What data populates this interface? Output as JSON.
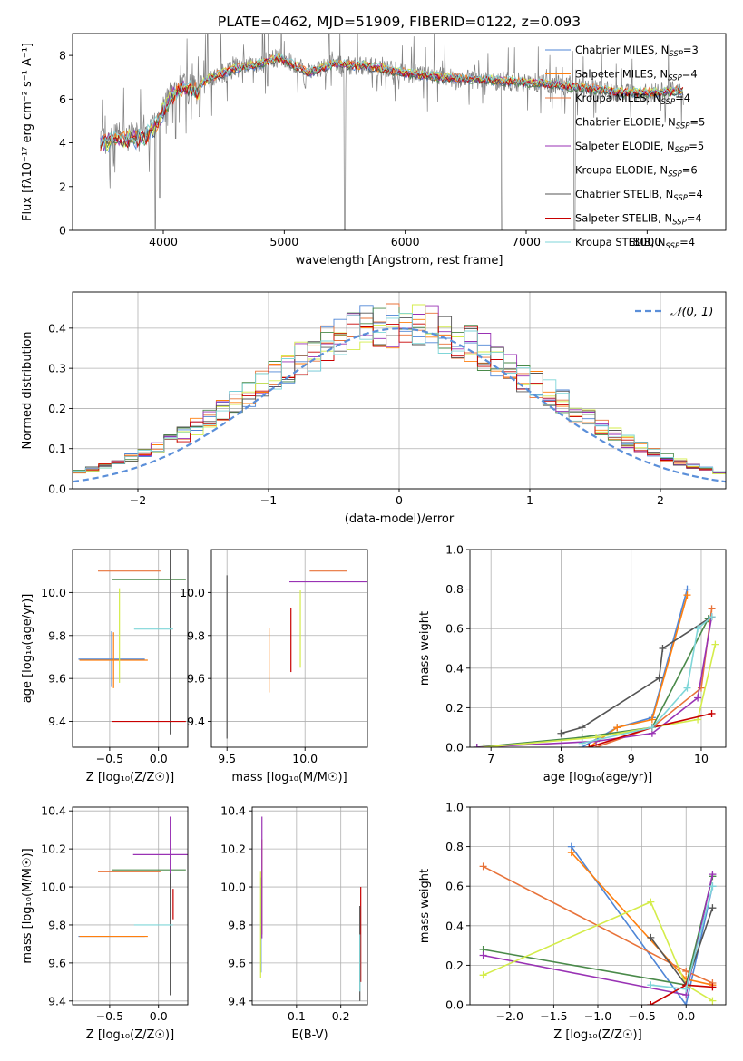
{
  "figure": {
    "title": "PLATE=0462, MJD=51909, FIBERID=0122, z=0.093"
  },
  "models": [
    {
      "name": "Chabrier MILES",
      "nssp": "3",
      "color": "#4f86d6"
    },
    {
      "name": "Salpeter MILES",
      "nssp": "4",
      "color": "#ff7f0e"
    },
    {
      "name": "Kroupa MILES",
      "nssp": "4",
      "color": "#e8733a"
    },
    {
      "name": "Chabrier ELODIE",
      "nssp": "5",
      "color": "#4a8a4a"
    },
    {
      "name": "Salpeter ELODIE",
      "nssp": "5",
      "color": "#9932b4"
    },
    {
      "name": "Kroupa ELODIE",
      "nssp": "6",
      "color": "#d4ec4a"
    },
    {
      "name": "Chabrier STELIB",
      "nssp": "4",
      "color": "#555555"
    },
    {
      "name": "Salpeter STELIB",
      "nssp": "4",
      "color": "#c80000"
    },
    {
      "name": "Kroupa STELIB",
      "nssp": "4",
      "color": "#7fd6d8"
    }
  ],
  "chart_data": [
    {
      "type": "line",
      "id": "spectrum",
      "xlabel": "wavelength [Angstrom, rest frame]",
      "ylabel": "Flux [fλ10⁻¹⁷ erg cm⁻² s⁻¹ A⁻¹]",
      "xlim": [
        3250,
        8650
      ],
      "ylim": [
        0,
        9
      ],
      "xticks": [
        4000,
        5000,
        6000,
        7000,
        8000
      ],
      "yticks": [
        0,
        2,
        4,
        6,
        8
      ],
      "data_color": "#808080",
      "continuum": [
        [
          3480,
          4.3
        ],
        [
          3560,
          4.3
        ],
        [
          3620,
          4.5
        ],
        [
          3700,
          4.4
        ],
        [
          3800,
          4.6
        ],
        [
          3850,
          4.5
        ],
        [
          3950,
          5.2
        ],
        [
          4050,
          6.3
        ],
        [
          4150,
          6.8
        ],
        [
          4300,
          6.6
        ],
        [
          4400,
          7.0
        ],
        [
          4600,
          7.4
        ],
        [
          4800,
          7.6
        ],
        [
          4950,
          7.9
        ],
        [
          5100,
          7.5
        ],
        [
          5200,
          7.2
        ],
        [
          5400,
          7.6
        ],
        [
          5700,
          7.5
        ],
        [
          6000,
          7.2
        ],
        [
          6300,
          7.0
        ],
        [
          6600,
          6.9
        ],
        [
          6900,
          6.8
        ],
        [
          7200,
          6.7
        ],
        [
          7500,
          6.5
        ],
        [
          7800,
          6.3
        ],
        [
          8100,
          6.3
        ],
        [
          8300,
          6.4
        ]
      ],
      "absorption_lines": [
        [
          3934,
          0.1
        ],
        [
          3969,
          1.5
        ],
        [
          4102,
          4.2
        ],
        [
          4300,
          5.2
        ],
        [
          4861,
          6.6
        ],
        [
          5175,
          6.5
        ],
        [
          5500,
          0.0
        ],
        [
          6800,
          0.0
        ],
        [
          7400,
          0.0
        ]
      ],
      "legend_position": "upper right"
    },
    {
      "type": "histogram",
      "id": "residuals",
      "xlabel": "(data-model)/error",
      "ylabel": "Normed distribution",
      "xlim": [
        -2.5,
        2.5
      ],
      "ylim": [
        0,
        0.49
      ],
      "xticks": [
        -2,
        -1,
        0,
        1,
        2
      ],
      "yticks": [
        0.0,
        0.1,
        0.2,
        0.3,
        0.4
      ],
      "grid": true,
      "bin_width": 0.1,
      "gaussian_label": "𝒩(0, 1)",
      "gaussian_color": "#5b8fd9",
      "legend_position": "upper right"
    },
    {
      "type": "errorbar",
      "id": "age-vs-z",
      "xlabel": "Z [log₁₀(Z/Z☉)]",
      "ylabel": "age  [log₁₀(age/yr)]",
      "xlim": [
        -0.88,
        0.3
      ],
      "ylim": [
        9.28,
        10.2
      ],
      "xticks": [
        -0.5,
        0.0
      ],
      "yticks": [
        9.4,
        9.6,
        9.8,
        10.0
      ],
      "grid": true,
      "points": [
        {
          "model": 0,
          "x": -0.48,
          "xerr": 0.34,
          "y": 9.69,
          "yerr": 0.13
        },
        {
          "model": 1,
          "x": -0.46,
          "xerr": 0.35,
          "y": 9.685,
          "yerr": 0.13
        },
        {
          "model": 2,
          "x": -0.3,
          "xerr": 0.32,
          "y": 10.1,
          "yerr": 0.0
        },
        {
          "model": 3,
          "x": -0.1,
          "xerr": 0.38,
          "y": 10.06,
          "yerr": 0.0
        },
        {
          "model": 4,
          "x": 0.12,
          "xerr": 0.0,
          "y": 9.95,
          "yerr": 0.1
        },
        {
          "model": 5,
          "x": -0.4,
          "xerr": 0.0,
          "y": 9.8,
          "yerr": 0.22
        },
        {
          "model": 6,
          "x": 0.12,
          "xerr": 0.0,
          "y": 9.78,
          "yerr": 0.44
        },
        {
          "model": 7,
          "x": -0.1,
          "xerr": 0.38,
          "y": 9.4,
          "yerr": 0.0
        },
        {
          "model": 8,
          "x": -0.05,
          "xerr": 0.2,
          "y": 9.83,
          "yerr": 0.0
        }
      ]
    },
    {
      "type": "errorbar",
      "id": "age-vs-mass",
      "xlabel": "mass [log₁₀(M/M☉)]",
      "ylabel": "",
      "xlim": [
        9.4,
        10.4
      ],
      "ylim": [
        9.28,
        10.2
      ],
      "xticks": [
        9.5,
        10.0
      ],
      "yticks": [
        9.4,
        9.6,
        9.8,
        10.0
      ],
      "grid": true,
      "points": [
        {
          "model": 0,
          "x": 9.7,
          "xerr": 0.0,
          "y": 9.69,
          "yerr": 0.0
        },
        {
          "model": 1,
          "x": 9.77,
          "xerr": 0.0,
          "y": 9.685,
          "yerr": 0.15
        },
        {
          "model": 2,
          "x": 10.15,
          "xerr": 0.12,
          "y": 10.1,
          "yerr": 0.0
        },
        {
          "model": 3,
          "x": 10.02,
          "xerr": 0.0,
          "y": 10.06,
          "yerr": 0.0
        },
        {
          "model": 4,
          "x": 10.15,
          "xerr": 0.25,
          "y": 10.05,
          "yerr": 0.0
        },
        {
          "model": 5,
          "x": 9.97,
          "xerr": 0.0,
          "y": 9.83,
          "yerr": 0.18
        },
        {
          "model": 6,
          "x": 9.5,
          "xerr": 0.0,
          "y": 9.7,
          "yerr": 0.38
        },
        {
          "model": 7,
          "x": 9.91,
          "xerr": 0.0,
          "y": 9.78,
          "yerr": 0.15
        },
        {
          "model": 8,
          "x": 9.7,
          "xerr": 0.0,
          "y": 9.83,
          "yerr": 0.0
        }
      ]
    },
    {
      "type": "line",
      "id": "weight-vs-age",
      "xlabel": "age  [log₁₀(age/yr)]",
      "ylabel": "mass weight",
      "xlim": [
        6.7,
        10.35
      ],
      "ylim": [
        0,
        1.0
      ],
      "xticks": [
        7,
        8,
        9,
        10
      ],
      "yticks": [
        0.0,
        0.2,
        0.4,
        0.6,
        0.8,
        1.0
      ],
      "grid": true,
      "marker": "+",
      "series": [
        {
          "model": 0,
          "x": [
            8.3,
            8.8,
            9.3,
            9.8
          ],
          "y": [
            0.0,
            0.1,
            0.15,
            0.8
          ]
        },
        {
          "model": 1,
          "x": [
            8.4,
            8.8,
            9.3,
            9.8
          ],
          "y": [
            0.0,
            0.1,
            0.14,
            0.77
          ]
        },
        {
          "model": 2,
          "x": [
            8.5,
            9.3,
            10.0,
            10.15
          ],
          "y": [
            0.0,
            0.1,
            0.3,
            0.7
          ]
        },
        {
          "model": 3,
          "x": [
            6.8,
            8.3,
            9.3,
            10.1
          ],
          "y": [
            0.0,
            0.05,
            0.1,
            0.65
          ]
        },
        {
          "model": 4,
          "x": [
            6.8,
            8.5,
            9.3,
            9.95,
            10.15
          ],
          "y": [
            0.0,
            0.03,
            0.07,
            0.25,
            0.66
          ]
        },
        {
          "model": 5,
          "x": [
            6.9,
            8.5,
            9.3,
            9.95,
            10.2
          ],
          "y": [
            0.0,
            0.05,
            0.1,
            0.14,
            0.52
          ]
        },
        {
          "model": 6,
          "x": [
            8.0,
            8.3,
            9.4,
            9.45,
            10.15
          ],
          "y": [
            0.07,
            0.1,
            0.35,
            0.5,
            0.66
          ]
        },
        {
          "model": 7,
          "x": [
            8.4,
            9.3,
            10.15
          ],
          "y": [
            0.0,
            0.1,
            0.17
          ]
        },
        {
          "model": 8,
          "x": [
            8.3,
            9.3,
            9.8,
            9.95,
            10.15
          ],
          "y": [
            0.02,
            0.1,
            0.3,
            0.6,
            0.66
          ]
        }
      ]
    },
    {
      "type": "errorbar",
      "id": "mass-vs-z",
      "xlabel": "Z [log₁₀(Z/Z☉)]",
      "ylabel": "mass [log₁₀(M/M☉)]",
      "xlim": [
        -0.88,
        0.3
      ],
      "ylim": [
        9.38,
        10.42
      ],
      "xticks": [
        -0.5,
        0.0
      ],
      "yticks": [
        9.4,
        9.6,
        9.8,
        10.0,
        10.2,
        10.4
      ],
      "grid": true,
      "points": [
        {
          "model": 0,
          "x": -0.48,
          "xerr": 0.34,
          "y": 9.74,
          "yerr": 0.0
        },
        {
          "model": 1,
          "x": -0.46,
          "xerr": 0.35,
          "y": 9.74,
          "yerr": 0.0
        },
        {
          "model": 2,
          "x": -0.3,
          "xerr": 0.32,
          "y": 10.08,
          "yerr": 0.0
        },
        {
          "model": 3,
          "x": -0.1,
          "xerr": 0.38,
          "y": 10.09,
          "yerr": 0.0
        },
        {
          "model": 4,
          "x": 0.12,
          "xerr": 0.38,
          "y": 10.17,
          "yerr": 0.2
        },
        {
          "model": 5,
          "x": -0.4,
          "xerr": 0.0,
          "y": 9.97,
          "yerr": 0.0
        },
        {
          "model": 6,
          "x": 0.12,
          "xerr": 0.0,
          "y": 9.75,
          "yerr": 0.32
        },
        {
          "model": 7,
          "x": 0.15,
          "xerr": 0.0,
          "y": 9.91,
          "yerr": 0.08
        },
        {
          "model": 8,
          "x": -0.05,
          "xerr": 0.2,
          "y": 9.8,
          "yerr": 0.0
        }
      ]
    },
    {
      "type": "errorbar",
      "id": "mass-vs-ebv",
      "xlabel": "E(B-V)",
      "ylabel": "",
      "xlim": [
        0.0,
        0.26
      ],
      "ylim": [
        9.38,
        10.42
      ],
      "xticks": [
        0.1,
        0.2
      ],
      "yticks": [
        9.4,
        9.6,
        9.8,
        10.0,
        10.2,
        10.4
      ],
      "grid": true,
      "points": [
        {
          "model": 0,
          "x": 0.02,
          "xerr": 0.0,
          "y": 9.8,
          "yerr": 0.25
        },
        {
          "model": 2,
          "x": 0.022,
          "xerr": 0.0,
          "y": 10.0,
          "yerr": 0.25
        },
        {
          "model": 4,
          "x": 0.022,
          "xerr": 0.0,
          "y": 10.05,
          "yerr": 0.32
        },
        {
          "model": 5,
          "x": 0.019,
          "xerr": 0.0,
          "y": 9.8,
          "yerr": 0.28
        },
        {
          "model": 7,
          "x": 0.245,
          "xerr": 0.0,
          "y": 9.75,
          "yerr": 0.25
        },
        {
          "model": 6,
          "x": 0.243,
          "xerr": 0.0,
          "y": 9.65,
          "yerr": 0.25
        },
        {
          "model": 8,
          "x": 0.243,
          "xerr": 0.0,
          "y": 9.6,
          "yerr": 0.15
        }
      ]
    },
    {
      "type": "line",
      "id": "weight-vs-z",
      "xlabel": "Z [log₁₀(Z/Z☉)]",
      "ylabel": "mass weight",
      "xlim": [
        -2.45,
        0.45
      ],
      "ylim": [
        0,
        1.0
      ],
      "xticks": [
        -2.0,
        -1.5,
        -1.0,
        -0.5,
        0.0
      ],
      "yticks": [
        0.0,
        0.2,
        0.4,
        0.6,
        0.8,
        1.0
      ],
      "grid": true,
      "marker": "+",
      "series": [
        {
          "model": 0,
          "x": [
            -1.3,
            0.0,
            0.3
          ],
          "y": [
            0.8,
            0.0,
            0.6
          ]
        },
        {
          "model": 1,
          "x": [
            -1.3,
            0.0,
            0.3
          ],
          "y": [
            0.77,
            0.13,
            0.1
          ]
        },
        {
          "model": 2,
          "x": [
            -2.3,
            0.0,
            0.3
          ],
          "y": [
            0.7,
            0.17,
            0.11
          ]
        },
        {
          "model": 3,
          "x": [
            -2.3,
            0.0,
            0.3
          ],
          "y": [
            0.28,
            0.1,
            0.65
          ]
        },
        {
          "model": 4,
          "x": [
            -2.3,
            0.0,
            0.3
          ],
          "y": [
            0.25,
            0.05,
            0.66
          ]
        },
        {
          "model": 5,
          "x": [
            -2.3,
            -0.4,
            0.0,
            0.3
          ],
          "y": [
            0.15,
            0.52,
            0.1,
            0.02
          ]
        },
        {
          "model": 6,
          "x": [
            -0.4,
            0.0,
            0.3
          ],
          "y": [
            0.34,
            0.1,
            0.49
          ]
        },
        {
          "model": 7,
          "x": [
            -0.4,
            0.0,
            0.3
          ],
          "y": [
            0.0,
            0.1,
            0.09
          ]
        },
        {
          "model": 8,
          "x": [
            -0.4,
            0.0,
            0.3
          ],
          "y": [
            0.1,
            0.08,
            0.6
          ]
        }
      ]
    }
  ]
}
